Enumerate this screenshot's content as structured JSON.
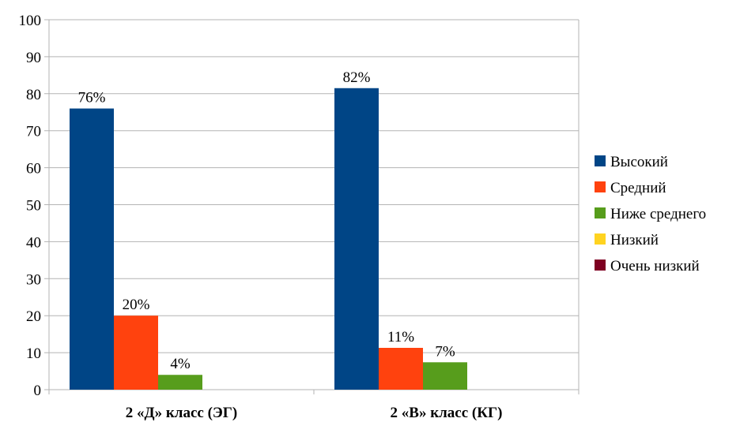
{
  "chart_data": {
    "type": "bar",
    "title": "",
    "xlabel": "",
    "ylabel": "",
    "ylim": [
      0,
      100
    ],
    "yticks": [
      0,
      10,
      20,
      30,
      40,
      50,
      60,
      70,
      80,
      90,
      100
    ],
    "grid": true,
    "legend_position": "right",
    "categories": [
      "2 «Д» класс (ЭГ)",
      "2 «В» класс (КГ)"
    ],
    "series": [
      {
        "name": "Высокий",
        "color": "#004586",
        "values": [
          76,
          81.5
        ],
        "labels": [
          "76%",
          "82%"
        ]
      },
      {
        "name": "Средний",
        "color": "#ff420e",
        "values": [
          20,
          11.3
        ],
        "labels": [
          "20%",
          "11%"
        ]
      },
      {
        "name": "Ниже среднего",
        "color": "#579d1c",
        "values": [
          4,
          7.4
        ],
        "labels": [
          "4%",
          "7%"
        ]
      },
      {
        "name": "Низкий",
        "color": "#ffd320",
        "values": [
          0,
          0
        ],
        "labels": [
          "",
          ""
        ]
      },
      {
        "name": "Очень низкий",
        "color": "#7e0021",
        "values": [
          0,
          0
        ],
        "labels": [
          "",
          ""
        ]
      }
    ]
  }
}
